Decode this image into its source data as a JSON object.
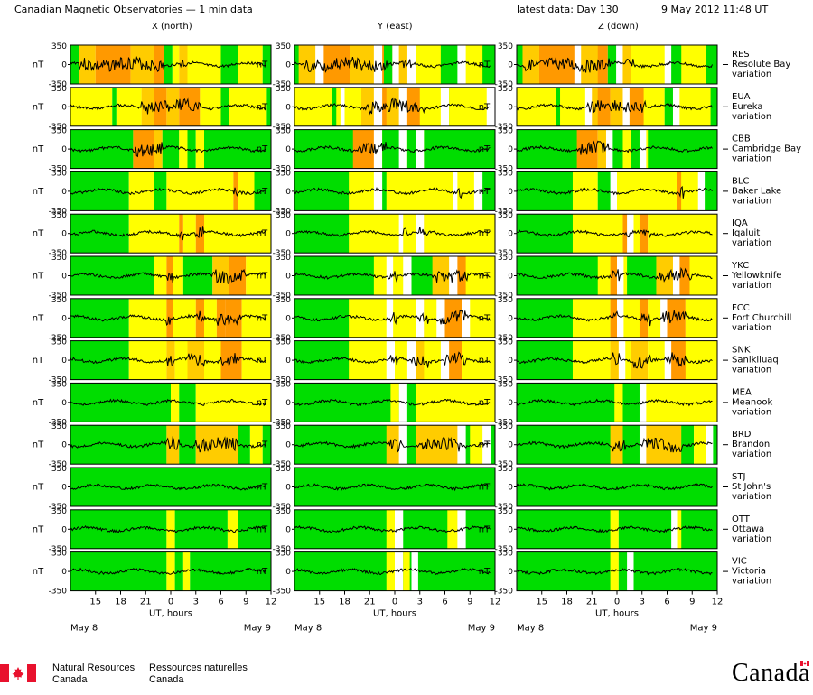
{
  "header": {
    "title": "Canadian Magnetic Observatories — 1 min data",
    "latest": "latest data: Day 130",
    "date": "9 May 2012 11:48 UT"
  },
  "columns": [
    {
      "label": "X (north)"
    },
    {
      "label": "Y (east)"
    },
    {
      "label": "Z (down)"
    }
  ],
  "y_unit": "nT",
  "x_axis_title": "UT, hours",
  "date_left": "May  8",
  "date_right": "May  9",
  "footer": {
    "dept_en_1": "Natural Resources",
    "dept_en_2": "Canada",
    "dept_fr_1": "Ressources naturelles",
    "dept_fr_2": "Canada",
    "wordmark": "Canada"
  },
  "colors": {
    "quiet": "#00dd00",
    "unsettled": "#ffff00",
    "active": "#ffcc00",
    "storm": "#ff9900",
    "trace": "#000000"
  },
  "chart_data": {
    "type": "line",
    "x": {
      "unit": "UT hours",
      "start": 12.0,
      "end": 36.0,
      "ticks": [
        "15",
        "18",
        "21",
        "0",
        "3",
        "6",
        "9",
        "12"
      ]
    },
    "ylim": [
      -350,
      350
    ],
    "yticks": [
      "350",
      "0",
      "-350"
    ],
    "stations": [
      {
        "code": "RES",
        "name": "Resolute Bay",
        "kind": "variation",
        "bg": [
          [
            "quiet",
            [
              12,
              13
            ]
          ],
          [
            "active",
            [
              13,
              15
            ]
          ],
          [
            "storm",
            [
              15,
              19.2
            ]
          ],
          [
            "active",
            [
              19.2,
              22
            ]
          ],
          [
            "storm",
            [
              22,
              23.2
            ]
          ],
          [
            "quiet",
            [
              23.2,
              24.2
            ]
          ],
          [
            "unsettled",
            [
              24.2,
              25
            ]
          ],
          [
            "active",
            [
              25,
              26
            ]
          ],
          [
            "unsettled",
            [
              26,
              30
            ]
          ],
          [
            "quiet",
            [
              30,
              32
            ]
          ],
          [
            "unsettled",
            [
              32,
              35
            ]
          ],
          [
            "quiet",
            [
              35,
              36
            ]
          ]
        ]
      },
      {
        "code": "EUA",
        "name": "Eureka",
        "kind": "variation",
        "bg": [
          [
            "unsettled",
            [
              12,
              17
            ]
          ],
          [
            "quiet",
            [
              17,
              17.5
            ]
          ],
          [
            "unsettled",
            [
              17.5,
              20.5
            ]
          ],
          [
            "active",
            [
              20.5,
              22
            ]
          ],
          [
            "storm",
            [
              22,
              23.5
            ]
          ],
          [
            "active",
            [
              23.5,
              25
            ]
          ],
          [
            "storm",
            [
              25,
              27.5
            ]
          ],
          [
            "unsettled",
            [
              27.5,
              30
            ]
          ],
          [
            "quiet",
            [
              30,
              31
            ]
          ],
          [
            "unsettled",
            [
              31,
              35.5
            ]
          ],
          [
            "quiet",
            [
              35.5,
              36
            ]
          ]
        ]
      },
      {
        "code": "CBB",
        "name": "Cambridge Bay",
        "kind": "variation",
        "bg": [
          [
            "quiet",
            [
              12,
              19.5
            ]
          ],
          [
            "storm",
            [
              19.5,
              22
            ]
          ],
          [
            "active",
            [
              22,
              23
            ]
          ],
          [
            "quiet",
            [
              23,
              25
            ]
          ],
          [
            "unsettled",
            [
              25,
              26
            ]
          ],
          [
            "quiet",
            [
              26,
              27
            ]
          ],
          [
            "unsettled",
            [
              27,
              28
            ]
          ],
          [
            "quiet",
            [
              28,
              36
            ]
          ]
        ]
      },
      {
        "code": "BLC",
        "name": "Baker Lake",
        "kind": "variation",
        "bg": [
          [
            "quiet",
            [
              12,
              19
            ]
          ],
          [
            "unsettled",
            [
              19,
              22
            ]
          ],
          [
            "quiet",
            [
              22,
              23.5
            ]
          ],
          [
            "unsettled",
            [
              23.5,
              31.5
            ]
          ],
          [
            "storm",
            [
              31.5,
              32
            ]
          ],
          [
            "unsettled",
            [
              32,
              34
            ]
          ],
          [
            "quiet",
            [
              34,
              36
            ]
          ]
        ]
      },
      {
        "code": "IQA",
        "name": "Iqaluit",
        "kind": "variation",
        "bg": [
          [
            "quiet",
            [
              12,
              19
            ]
          ],
          [
            "unsettled",
            [
              19,
              25
            ]
          ],
          [
            "storm",
            [
              25,
              25.5
            ]
          ],
          [
            "unsettled",
            [
              25.5,
              27
            ]
          ],
          [
            "storm",
            [
              27,
              28
            ]
          ],
          [
            "unsettled",
            [
              28,
              36
            ]
          ]
        ]
      },
      {
        "code": "YKC",
        "name": "Yellowknife",
        "kind": "variation",
        "bg": [
          [
            "quiet",
            [
              12,
              22
            ]
          ],
          [
            "unsettled",
            [
              22,
              23.5
            ]
          ],
          [
            "storm",
            [
              23.5,
              24.3
            ]
          ],
          [
            "unsettled",
            [
              24.3,
              25.5
            ]
          ],
          [
            "quiet",
            [
              25.5,
              29
            ]
          ],
          [
            "active",
            [
              29,
              31
            ]
          ],
          [
            "storm",
            [
              31,
              33
            ]
          ],
          [
            "unsettled",
            [
              33,
              36
            ]
          ]
        ]
      },
      {
        "code": "FCC",
        "name": "Fort Churchill",
        "kind": "variation",
        "bg": [
          [
            "quiet",
            [
              12,
              19
            ]
          ],
          [
            "unsettled",
            [
              19,
              23.5
            ]
          ],
          [
            "storm",
            [
              23.5,
              24.3
            ]
          ],
          [
            "unsettled",
            [
              24.3,
              27
            ]
          ],
          [
            "storm",
            [
              27,
              28
            ]
          ],
          [
            "unsettled",
            [
              28,
              29.5
            ]
          ],
          [
            "storm",
            [
              29.5,
              30.5
            ]
          ],
          [
            "storm",
            [
              30.5,
              32.5
            ]
          ],
          [
            "unsettled",
            [
              32.5,
              36
            ]
          ]
        ]
      },
      {
        "code": "SNK",
        "name": "Sanikiluaq",
        "kind": "variation",
        "bg": [
          [
            "quiet",
            [
              12,
              19
            ]
          ],
          [
            "unsettled",
            [
              19,
              23.5
            ]
          ],
          [
            "active",
            [
              23.5,
              24.5
            ]
          ],
          [
            "unsettled",
            [
              24.5,
              26
            ]
          ],
          [
            "active",
            [
              26,
              28
            ]
          ],
          [
            "unsettled",
            [
              28,
              30
            ]
          ],
          [
            "storm",
            [
              30,
              32.5
            ]
          ],
          [
            "unsettled",
            [
              32.5,
              36
            ]
          ]
        ]
      },
      {
        "code": "MEA",
        "name": "Meanook",
        "kind": "variation",
        "bg": [
          [
            "quiet",
            [
              12,
              24
            ]
          ],
          [
            "unsettled",
            [
              24,
              25
            ]
          ],
          [
            "quiet",
            [
              25,
              27
            ]
          ],
          [
            "unsettled",
            [
              27,
              36
            ]
          ]
        ]
      },
      {
        "code": "BRD",
        "name": "Brandon",
        "kind": "variation",
        "bg": [
          [
            "quiet",
            [
              12,
              23.5
            ]
          ],
          [
            "active",
            [
              23.5,
              25
            ]
          ],
          [
            "quiet",
            [
              25,
              27
            ]
          ],
          [
            "active",
            [
              27,
              32
            ]
          ],
          [
            "quiet",
            [
              32,
              33.5
            ]
          ],
          [
            "unsettled",
            [
              33.5,
              35
            ]
          ],
          [
            "quiet",
            [
              35,
              36
            ]
          ]
        ]
      },
      {
        "code": "STJ",
        "name": "St John's",
        "kind": "variation",
        "bg": [
          [
            "quiet",
            [
              12,
              36
            ]
          ]
        ]
      },
      {
        "code": "OTT",
        "name": "Ottawa",
        "kind": "variation",
        "bg": [
          [
            "quiet",
            [
              12,
              23.5
            ]
          ],
          [
            "unsettled",
            [
              23.5,
              24.5
            ]
          ],
          [
            "quiet",
            [
              24.5,
              30.8
            ]
          ],
          [
            "unsettled",
            [
              30.8,
              32
            ]
          ],
          [
            "quiet",
            [
              32,
              36
            ]
          ]
        ]
      },
      {
        "code": "VIC",
        "name": "Victoria",
        "kind": "variation",
        "bg": [
          [
            "quiet",
            [
              12,
              23.5
            ]
          ],
          [
            "unsettled",
            [
              23.5,
              24.5
            ]
          ],
          [
            "quiet",
            [
              24.5,
              25.5
            ]
          ],
          [
            "unsettled",
            [
              25.5,
              26.3
            ]
          ],
          [
            "quiet",
            [
              26.3,
              36
            ]
          ]
        ]
      }
    ]
  }
}
